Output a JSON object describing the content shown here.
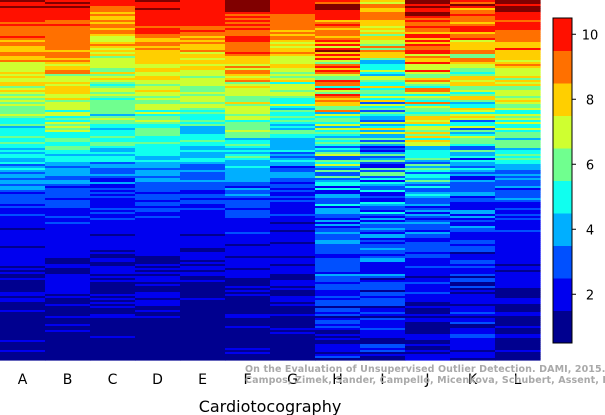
{
  "chart_data": {
    "type": "heatmap",
    "title": "",
    "xlabel": "Cardiotocography",
    "ylabel": "",
    "columns": [
      "A",
      "B",
      "C",
      "D",
      "E",
      "F",
      "G",
      "H",
      "I",
      "J",
      "K",
      "L"
    ],
    "colorbar": {
      "min": 0.5,
      "max": 10.5,
      "ticks": [
        2,
        4,
        6,
        8,
        10
      ],
      "levels": [
        {
          "value": 1,
          "color": "#00008f"
        },
        {
          "value": 2,
          "color": "#0000ef"
        },
        {
          "value": 3,
          "color": "#0050ff"
        },
        {
          "value": 4,
          "color": "#00afff"
        },
        {
          "value": 5,
          "color": "#10ffef"
        },
        {
          "value": 6,
          "color": "#70ff8f"
        },
        {
          "value": 7,
          "color": "#cfff30"
        },
        {
          "value": 8,
          "color": "#ffcf00"
        },
        {
          "value": 9,
          "color": "#ff7000"
        },
        {
          "value": 10,
          "color": "#ff1000"
        },
        {
          "value": 11,
          "color": "#800000"
        }
      ]
    },
    "column_profiles": [
      [
        [
          0,
          10.5
        ],
        [
          0.05,
          9.6
        ],
        [
          0.13,
          8.5
        ],
        [
          0.2,
          7.4
        ],
        [
          0.3,
          6.2
        ],
        [
          0.4,
          5.0
        ],
        [
          0.46,
          4.0
        ],
        [
          0.52,
          3.0
        ],
        [
          0.62,
          2.0
        ],
        [
          0.8,
          1.4
        ],
        [
          1,
          1
        ]
      ],
      [
        [
          0,
          10.6
        ],
        [
          0.05,
          9.8
        ],
        [
          0.13,
          8.8
        ],
        [
          0.2,
          7.6
        ],
        [
          0.3,
          6.4
        ],
        [
          0.4,
          5.2
        ],
        [
          0.46,
          4.2
        ],
        [
          0.52,
          3.1
        ],
        [
          0.62,
          2.1
        ],
        [
          0.8,
          1.4
        ],
        [
          1,
          1
        ]
      ],
      [
        [
          0,
          9.6
        ],
        [
          0.05,
          8.8
        ],
        [
          0.13,
          7.8
        ],
        [
          0.2,
          6.8
        ],
        [
          0.3,
          5.8
        ],
        [
          0.4,
          4.8
        ],
        [
          0.46,
          3.8
        ],
        [
          0.52,
          2.8
        ],
        [
          0.62,
          2.0
        ],
        [
          0.8,
          1.4
        ],
        [
          1,
          1
        ]
      ],
      [
        [
          0,
          10.5
        ],
        [
          0.05,
          9.8
        ],
        [
          0.13,
          8.6
        ],
        [
          0.2,
          7.4
        ],
        [
          0.3,
          6.2
        ],
        [
          0.4,
          5.0
        ],
        [
          0.46,
          4.0
        ],
        [
          0.52,
          3.0
        ],
        [
          0.62,
          2.0
        ],
        [
          0.8,
          1.4
        ],
        [
          1,
          1
        ]
      ],
      [
        [
          0,
          10.2
        ],
        [
          0.05,
          9.9
        ],
        [
          0.13,
          8.4
        ],
        [
          0.2,
          7.2
        ],
        [
          0.3,
          6.0
        ],
        [
          0.4,
          4.8
        ],
        [
          0.46,
          3.8
        ],
        [
          0.52,
          2.8
        ],
        [
          0.62,
          1.9
        ],
        [
          0.8,
          1.3
        ],
        [
          1,
          1
        ]
      ],
      [
        [
          0,
          10.6
        ],
        [
          0.05,
          9.8
        ],
        [
          0.13,
          8.8
        ],
        [
          0.2,
          7.8
        ],
        [
          0.3,
          6.6
        ],
        [
          0.4,
          5.4
        ],
        [
          0.46,
          4.2
        ],
        [
          0.52,
          3.2
        ],
        [
          0.62,
          2.2
        ],
        [
          0.8,
          1.5
        ],
        [
          1,
          1
        ]
      ],
      [
        [
          0,
          10.3
        ],
        [
          0.05,
          9.2
        ],
        [
          0.13,
          8.0
        ],
        [
          0.2,
          6.8
        ],
        [
          0.3,
          5.6
        ],
        [
          0.4,
          4.6
        ],
        [
          0.46,
          3.6
        ],
        [
          0.52,
          2.8
        ],
        [
          0.62,
          2.0
        ],
        [
          0.8,
          1.4
        ],
        [
          1,
          1
        ]
      ],
      [
        [
          0,
          10.4
        ],
        [
          0.05,
          10.0
        ],
        [
          0.13,
          9.0
        ],
        [
          0.2,
          7.8
        ],
        [
          0.3,
          6.6
        ],
        [
          0.4,
          5.4
        ],
        [
          0.46,
          4.6
        ],
        [
          0.52,
          3.8
        ],
        [
          0.62,
          3.0
        ],
        [
          0.8,
          2.6
        ],
        [
          1,
          1.6
        ]
      ],
      [
        [
          0,
          8.4
        ],
        [
          0.05,
          7.8
        ],
        [
          0.13,
          7.0
        ],
        [
          0.2,
          6.2
        ],
        [
          0.3,
          5.4
        ],
        [
          0.4,
          4.6
        ],
        [
          0.46,
          4.2
        ],
        [
          0.52,
          3.8
        ],
        [
          0.62,
          3.2
        ],
        [
          0.8,
          2.4
        ],
        [
          1,
          1.6
        ]
      ],
      [
        [
          0,
          10.5
        ],
        [
          0.05,
          10.0
        ],
        [
          0.13,
          9.0
        ],
        [
          0.2,
          8.0
        ],
        [
          0.3,
          6.8
        ],
        [
          0.4,
          5.6
        ],
        [
          0.46,
          4.8
        ],
        [
          0.52,
          4.0
        ],
        [
          0.62,
          3.0
        ],
        [
          0.8,
          2.0
        ],
        [
          1,
          1.2
        ]
      ],
      [
        [
          0,
          9.8
        ],
        [
          0.05,
          9.2
        ],
        [
          0.13,
          8.0
        ],
        [
          0.2,
          7.0
        ],
        [
          0.3,
          5.8
        ],
        [
          0.4,
          4.8
        ],
        [
          0.46,
          4.0
        ],
        [
          0.52,
          3.2
        ],
        [
          0.62,
          2.6
        ],
        [
          0.8,
          2.1
        ],
        [
          1,
          1.6
        ]
      ],
      [
        [
          0,
          10.8
        ],
        [
          0.05,
          10.0
        ],
        [
          0.13,
          8.8
        ],
        [
          0.2,
          7.6
        ],
        [
          0.3,
          6.4
        ],
        [
          0.4,
          5.2
        ],
        [
          0.46,
          4.2
        ],
        [
          0.52,
          3.2
        ],
        [
          0.62,
          2.2
        ],
        [
          0.8,
          1.5
        ],
        [
          1,
          1
        ]
      ]
    ]
  },
  "credit": {
    "line1": "On the Evaluation of Unsupervised Outlier Detection. DAMI, 2015.",
    "line2": "Campos, Zimek, Sander, Campello, Micenkova, Schubert, Assent, Houle"
  }
}
